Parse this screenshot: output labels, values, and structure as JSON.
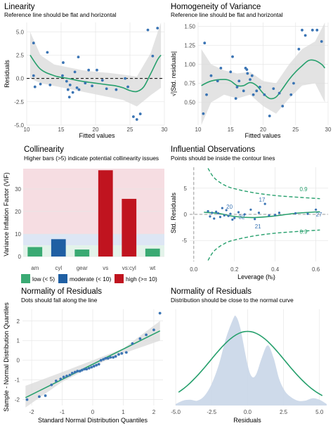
{
  "panels": {
    "linearity": {
      "title": "Linearity",
      "subtitle": "Reference line should be flat and horizontal",
      "xlabel": "Fitted values",
      "ylabel": "Residuals"
    },
    "homogeneity": {
      "title": "Homogeneity of Variance",
      "subtitle": "Reference line should be flat and horizontal",
      "xlabel": "Fitted values",
      "ylabel": "√|Std. residuals|"
    },
    "collinearity": {
      "title": "Collinearity",
      "subtitle": "Higher bars (>5) indicate potential collinearity issues",
      "xlabel": "",
      "ylabel": "Variance Inflation Factor (VIF)"
    },
    "influential": {
      "title": "Influential Observations",
      "subtitle": "Points should be inside the contour lines",
      "xlabel": "Leverage (hᵢᵢ)",
      "ylabel": "Std. Residuals"
    },
    "qq": {
      "title": "Normality of Residuals",
      "subtitle": "Dots should fall along the line",
      "xlabel": "Standard Normal Distribution Quantiles",
      "ylabel": "Sample - Normal Distribution Quantiles"
    },
    "density": {
      "title": "Normality of Residuals",
      "subtitle": "Distribution should be close to the normal curve",
      "xlabel": "Residuals",
      "ylabel": ""
    }
  },
  "colors": {
    "point": "#3a74b4",
    "fit_line": "#27a06d",
    "band": "#dcdcdc",
    "low": "#3aaa73",
    "moderate": "#1f5fa3",
    "high": "#c0141f",
    "zone_low": "#e3f3ea",
    "zone_mod": "#dde6f4",
    "zone_high": "#f6dde2",
    "density_fill": "#c9d6e8"
  },
  "chart_data": [
    {
      "type": "scatter",
      "panel": "linearity",
      "xlim": [
        10,
        30
      ],
      "ylim": [
        -5,
        6
      ],
      "xticks": [
        10,
        15,
        20,
        25,
        30
      ],
      "yticks": [
        -5.0,
        -2.5,
        0.0,
        2.5,
        5.0
      ],
      "points": [
        [
          11,
          3.8
        ],
        [
          11,
          0.3
        ],
        [
          11.2,
          -0.9
        ],
        [
          12,
          -0.6
        ],
        [
          13,
          2.8
        ],
        [
          13.4,
          -0.7
        ],
        [
          15.2,
          0.3
        ],
        [
          15.3,
          1.7
        ],
        [
          15.8,
          -0.3
        ],
        [
          16,
          -1.2
        ],
        [
          16.2,
          -2.0
        ],
        [
          16.3,
          -0.7
        ],
        [
          16.7,
          -1.5
        ],
        [
          17,
          0.7
        ],
        [
          17.3,
          -1.0
        ],
        [
          17.5,
          2.3
        ],
        [
          17.6,
          -1.2
        ],
        [
          18.5,
          -0.5
        ],
        [
          19,
          0.9
        ],
        [
          19.5,
          -0.8
        ],
        [
          20.2,
          0.9
        ],
        [
          21,
          -0.2
        ],
        [
          21.6,
          -1.1
        ],
        [
          23,
          -1.2
        ],
        [
          24.3,
          0.0
        ],
        [
          24.7,
          -0.9
        ],
        [
          25.5,
          -4.1
        ],
        [
          26,
          -4.4
        ],
        [
          26.5,
          -3.8
        ],
        [
          27.6,
          5.2
        ],
        [
          28.3,
          2.4
        ],
        [
          29,
          5.4
        ]
      ],
      "fit": [
        [
          10.5,
          2.5
        ],
        [
          12,
          1.0
        ],
        [
          14,
          0.3
        ],
        [
          16,
          0.0
        ],
        [
          18,
          -0.3
        ],
        [
          20,
          -0.5
        ],
        [
          22,
          -0.7
        ],
        [
          23,
          -0.8
        ],
        [
          24,
          -1.0
        ],
        [
          25,
          -1.3
        ],
        [
          26,
          -1.4
        ],
        [
          27,
          -0.9
        ],
        [
          28,
          0.5
        ],
        [
          29,
          2.0
        ],
        [
          29.5,
          2.5
        ]
      ],
      "band_upper": [
        [
          10.5,
          5.0
        ],
        [
          12,
          2.5
        ],
        [
          14,
          1.5
        ],
        [
          16,
          1.2
        ],
        [
          18,
          0.9
        ],
        [
          20,
          0.7
        ],
        [
          22,
          0.6
        ],
        [
          24,
          0.4
        ],
        [
          26,
          0.2
        ],
        [
          28,
          2.7
        ],
        [
          29.5,
          6.0
        ]
      ],
      "band_lower": [
        [
          10.5,
          0.0
        ],
        [
          12,
          -0.5
        ],
        [
          14,
          -0.8
        ],
        [
          16,
          -1.1
        ],
        [
          18,
          -1.4
        ],
        [
          20,
          -1.7
        ],
        [
          22,
          -2.0
        ],
        [
          24,
          -2.3
        ],
        [
          26,
          -3.0
        ],
        [
          28,
          -1.8
        ],
        [
          29.5,
          -1.0
        ]
      ],
      "reference_y": 0
    },
    {
      "type": "scatter",
      "panel": "homogeneity",
      "xlim": [
        10,
        30
      ],
      "ylim": [
        0.2,
        1.55
      ],
      "xticks": [
        10,
        15,
        20,
        25,
        30
      ],
      "yticks": [
        0.5,
        0.75,
        1.0,
        1.25,
        1.5
      ],
      "points": [
        [
          10.8,
          0.35
        ],
        [
          11,
          1.28
        ],
        [
          11.3,
          0.6
        ],
        [
          12,
          0.85
        ],
        [
          13,
          0.78
        ],
        [
          13.5,
          0.95
        ],
        [
          15,
          0.9
        ],
        [
          15.3,
          1.1
        ],
        [
          15.8,
          0.55
        ],
        [
          16,
          0.7
        ],
        [
          16.3,
          0.78
        ],
        [
          17,
          0.65
        ],
        [
          17.3,
          0.95
        ],
        [
          17.5,
          0.93
        ],
        [
          17.6,
          0.88
        ],
        [
          18,
          0.8
        ],
        [
          18.3,
          0.85
        ],
        [
          18.5,
          0.6
        ],
        [
          19,
          0.65
        ],
        [
          19.5,
          0.7
        ],
        [
          20.2,
          0.6
        ],
        [
          21,
          0.32
        ],
        [
          21.6,
          0.68
        ],
        [
          22.5,
          0.62
        ],
        [
          23,
          0.45
        ],
        [
          24.3,
          0.6
        ],
        [
          24.7,
          0.75
        ],
        [
          25.5,
          1.2
        ],
        [
          26,
          1.45
        ],
        [
          26.5,
          1.38
        ],
        [
          27.6,
          1.45
        ],
        [
          28.3,
          1.45
        ],
        [
          29,
          1.3
        ]
      ],
      "fit": [
        [
          10.5,
          0.72
        ],
        [
          12,
          0.78
        ],
        [
          14,
          0.8
        ],
        [
          15,
          0.78
        ],
        [
          16,
          0.72
        ],
        [
          17,
          0.72
        ],
        [
          18,
          0.76
        ],
        [
          19,
          0.72
        ],
        [
          20,
          0.62
        ],
        [
          21,
          0.55
        ],
        [
          22,
          0.57
        ],
        [
          23,
          0.68
        ],
        [
          24,
          0.8
        ],
        [
          25,
          0.9
        ],
        [
          26,
          0.98
        ],
        [
          27,
          1.05
        ],
        [
          28,
          1.05
        ],
        [
          29,
          1.0
        ],
        [
          29.5,
          0.95
        ]
      ],
      "band_upper": [
        [
          10.5,
          1.2
        ],
        [
          12,
          1.0
        ],
        [
          14,
          0.92
        ],
        [
          16,
          0.88
        ],
        [
          18,
          0.9
        ],
        [
          20,
          0.78
        ],
        [
          22,
          0.75
        ],
        [
          24,
          1.0
        ],
        [
          26,
          1.2
        ],
        [
          28,
          1.3
        ],
        [
          29.5,
          1.55
        ]
      ],
      "band_lower": [
        [
          10.5,
          0.2
        ],
        [
          12,
          0.5
        ],
        [
          14,
          0.6
        ],
        [
          16,
          0.55
        ],
        [
          18,
          0.6
        ],
        [
          20,
          0.45
        ],
        [
          22,
          0.35
        ],
        [
          24,
          0.55
        ],
        [
          26,
          0.72
        ],
        [
          28,
          0.75
        ],
        [
          29.5,
          0.5
        ]
      ]
    },
    {
      "type": "bar",
      "panel": "collinearity",
      "categories": [
        "am",
        "cyl",
        "gear",
        "vs",
        "vs:cyl",
        "wt"
      ],
      "values": [
        4.2,
        7.7,
        3.1,
        38.3,
        25.6,
        3.5
      ],
      "groups": [
        "low",
        "moderate",
        "low",
        "high",
        "high",
        "low"
      ],
      "ylim": [
        0,
        39
      ],
      "yticks": [
        0,
        10,
        20,
        30
      ],
      "zones": [
        {
          "from": 0,
          "to": 5,
          "group": "low"
        },
        {
          "from": 5,
          "to": 10,
          "group": "moderate"
        },
        {
          "from": 10,
          "to": 39,
          "group": "high"
        }
      ],
      "legend": [
        {
          "label": "low (< 5)",
          "group": "low"
        },
        {
          "label": "moderate (< 10)",
          "group": "moderate"
        },
        {
          "label": "high (>= 10)",
          "group": "high"
        }
      ],
      "legend_position": "bottom"
    },
    {
      "type": "scatter",
      "panel": "influential",
      "xlim": [
        -0.02,
        0.66
      ],
      "ylim": [
        -9,
        9
      ],
      "xticks": [
        0.0,
        0.2,
        0.4,
        0.6
      ],
      "yticks": [
        -5,
        0,
        5
      ],
      "points": [
        [
          0.07,
          0.6
        ],
        [
          0.08,
          -0.4
        ],
        [
          0.09,
          0.3
        ],
        [
          0.1,
          -0.8
        ],
        [
          0.11,
          0.5
        ],
        [
          0.12,
          0.2
        ],
        [
          0.13,
          -0.5
        ],
        [
          0.14,
          1.2
        ],
        [
          0.15,
          -0.2
        ],
        [
          0.16,
          0.8
        ],
        [
          0.17,
          -0.3
        ],
        [
          0.18,
          0.1
        ],
        [
          0.19,
          -1.0
        ],
        [
          0.2,
          -0.7
        ],
        [
          0.22,
          0.4
        ],
        [
          0.25,
          0.0
        ],
        [
          0.28,
          0.9
        ],
        [
          0.3,
          -0.9
        ],
        [
          0.32,
          0.3
        ],
        [
          0.35,
          2.0
        ],
        [
          0.37,
          -0.2
        ],
        [
          0.4,
          -0.1
        ],
        [
          0.42,
          0.3
        ],
        [
          0.5,
          0.2
        ],
        [
          0.56,
          0.1
        ],
        [
          0.6,
          0.9
        ]
      ],
      "labels": [
        {
          "text": "20",
          "x": 0.16,
          "y": 1.1
        },
        {
          "text": "17",
          "x": 0.32,
          "y": 2.4
        },
        {
          "text": "32",
          "x": 0.22,
          "y": -0.9
        },
        {
          "text": "21",
          "x": 0.3,
          "y": -2.7
        },
        {
          "text": "27",
          "x": 0.6,
          "y": -0.4
        }
      ],
      "fit": [
        [
          0.05,
          0.4
        ],
        [
          0.12,
          0.2
        ],
        [
          0.2,
          -0.4
        ],
        [
          0.3,
          -0.6
        ],
        [
          0.4,
          -0.3
        ],
        [
          0.5,
          0.2
        ],
        [
          0.62,
          0.5
        ]
      ],
      "contour_upper": [
        [
          0.07,
          8.8
        ],
        [
          0.1,
          7.0
        ],
        [
          0.15,
          5.6
        ],
        [
          0.2,
          4.9
        ],
        [
          0.3,
          4.1
        ],
        [
          0.4,
          3.6
        ],
        [
          0.5,
          3.3
        ],
        [
          0.62,
          3.0
        ]
      ],
      "contour_lower": [
        [
          0.07,
          -8.8
        ],
        [
          0.1,
          -7.0
        ],
        [
          0.15,
          -5.6
        ],
        [
          0.2,
          -4.9
        ],
        [
          0.3,
          -4.1
        ],
        [
          0.4,
          -3.6
        ],
        [
          0.5,
          -3.3
        ],
        [
          0.62,
          -3.0
        ]
      ],
      "contour_label": "0.9"
    },
    {
      "type": "scatter",
      "panel": "qq",
      "xlim": [
        -2.3,
        2.3
      ],
      "ylim": [
        -2.3,
        2.6
      ],
      "xticks": [
        -2,
        -1,
        0,
        1,
        2
      ],
      "yticks": [
        -2,
        -1,
        0,
        1,
        2
      ],
      "points": [
        [
          -2.15,
          -2.0
        ],
        [
          -1.75,
          -1.85
        ],
        [
          -1.55,
          -1.8
        ],
        [
          -1.35,
          -1.25
        ],
        [
          -1.2,
          -1.05
        ],
        [
          -1.05,
          -0.95
        ],
        [
          -0.95,
          -0.85
        ],
        [
          -0.85,
          -0.8
        ],
        [
          -0.75,
          -0.75
        ],
        [
          -0.67,
          -0.65
        ],
        [
          -0.58,
          -0.6
        ],
        [
          -0.5,
          -0.55
        ],
        [
          -0.42,
          -0.55
        ],
        [
          -0.35,
          -0.5
        ],
        [
          -0.27,
          -0.45
        ],
        [
          -0.2,
          -0.45
        ],
        [
          -0.12,
          -0.4
        ],
        [
          -0.04,
          -0.35
        ],
        [
          0.04,
          -0.3
        ],
        [
          0.12,
          -0.25
        ],
        [
          0.2,
          -0.2
        ],
        [
          0.27,
          0.0
        ],
        [
          0.35,
          0.05
        ],
        [
          0.42,
          0.1
        ],
        [
          0.5,
          0.1
        ],
        [
          0.58,
          0.15
        ],
        [
          0.67,
          0.15
        ],
        [
          0.75,
          0.2
        ],
        [
          0.85,
          0.3
        ],
        [
          0.95,
          0.35
        ],
        [
          1.1,
          0.4
        ],
        [
          1.3,
          0.85
        ],
        [
          1.55,
          1.1
        ],
        [
          1.75,
          1.3
        ],
        [
          2.0,
          1.55
        ],
        [
          2.2,
          2.4
        ]
      ],
      "fit": [
        [
          -2.2,
          -1.9
        ],
        [
          2.2,
          1.5
        ]
      ],
      "band_upper": [
        [
          -2.2,
          -1.3
        ],
        [
          -1,
          -0.6
        ],
        [
          0,
          0.0
        ],
        [
          1,
          0.6
        ],
        [
          2.2,
          2.0
        ]
      ],
      "band_lower": [
        [
          -2.2,
          -2.4
        ],
        [
          -1,
          -1.1
        ],
        [
          0,
          -0.3
        ],
        [
          1,
          0.35
        ],
        [
          2.2,
          1.0
        ]
      ]
    },
    {
      "type": "area",
      "panel": "density",
      "xlim": [
        -5.2,
        5.6
      ],
      "ylim": [
        0,
        0.2
      ],
      "xticks": [
        -5.0,
        -2.5,
        0.0,
        2.5,
        5.0
      ],
      "density": [
        [
          -5.0,
          0.003
        ],
        [
          -4.5,
          0.01
        ],
        [
          -4.0,
          0.012
        ],
        [
          -3.5,
          0.01
        ],
        [
          -3.0,
          0.02
        ],
        [
          -2.5,
          0.045
        ],
        [
          -2.0,
          0.085
        ],
        [
          -1.5,
          0.14
        ],
        [
          -1.0,
          0.18
        ],
        [
          -0.8,
          0.185
        ],
        [
          -0.5,
          0.16
        ],
        [
          0.0,
          0.085
        ],
        [
          0.3,
          0.06
        ],
        [
          0.6,
          0.065
        ],
        [
          1.0,
          0.1
        ],
        [
          1.4,
          0.125
        ],
        [
          1.8,
          0.1
        ],
        [
          2.2,
          0.055
        ],
        [
          2.6,
          0.03
        ],
        [
          3.0,
          0.018
        ],
        [
          3.5,
          0.01
        ],
        [
          4.0,
          0.01
        ],
        [
          4.5,
          0.015
        ],
        [
          5.0,
          0.012
        ],
        [
          5.5,
          0.003
        ]
      ],
      "normal_mean": 0,
      "normal_sd": 2.59
    }
  ]
}
